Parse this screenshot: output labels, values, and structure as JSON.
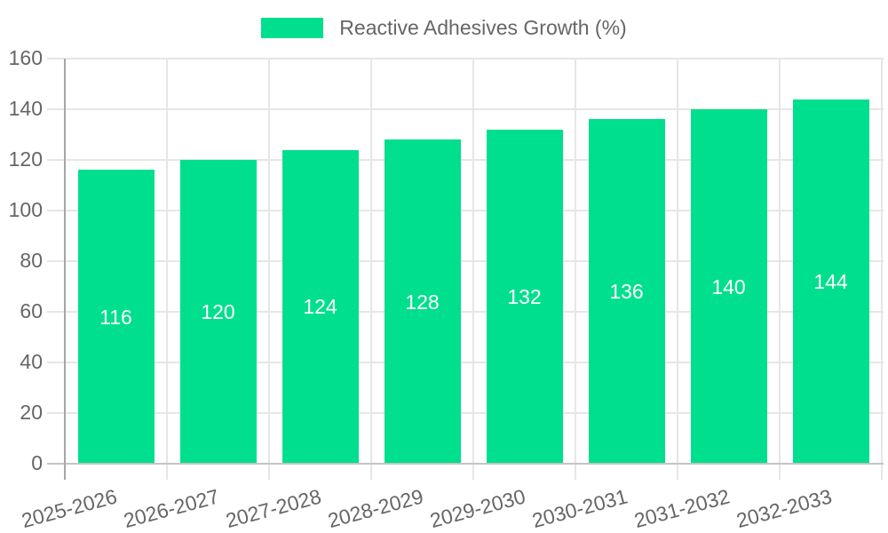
{
  "legend": {
    "label": "Reactive Adhesives Growth (%)"
  },
  "chart_data": {
    "type": "bar",
    "title": "",
    "xlabel": "",
    "ylabel": "",
    "legend_entries": [
      "Reactive Adhesives Growth (%)"
    ],
    "legend_position": "top",
    "categories": [
      "2025-2026",
      "2026-2027",
      "2027-2028",
      "2028-2029",
      "2029-2030",
      "2030-2031",
      "2031-2032",
      "2032-2033"
    ],
    "values": [
      116,
      120,
      124,
      128,
      132,
      136,
      140,
      144
    ],
    "bar_value_labels": [
      "116",
      "120",
      "124",
      "128",
      "132",
      "136",
      "140",
      "144"
    ],
    "ylim": [
      0,
      160
    ],
    "ytick_step": 20,
    "yticks": [
      0,
      20,
      40,
      60,
      80,
      100,
      120,
      140,
      160
    ],
    "grid": true,
    "x_tick_label_rotation_deg": -15,
    "colors": {
      "bar": "#00DF8E",
      "bar_value_label": "#FFFFFF",
      "axis_text": "#666666",
      "gridline": "#E6E6E6",
      "y_axis_line": "#A6A6A6",
      "x_axis_line": "#C4C4C4",
      "background": "#FFFFFF"
    }
  }
}
